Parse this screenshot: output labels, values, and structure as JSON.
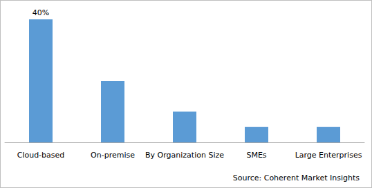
{
  "chart_data": {
    "type": "bar",
    "categories": [
      "Cloud-based",
      "On-premise",
      "By Organization Size",
      "SMEs",
      "Large Enterprises"
    ],
    "values": [
      40,
      20,
      10,
      5,
      5
    ],
    "value_labels": [
      "40%",
      null,
      null,
      null,
      null
    ],
    "data_labels": true,
    "color": "#5b9bd5",
    "ylim": [
      0,
      40
    ],
    "grid": false,
    "tick_labels": "x",
    "source": "Source: Coherent Market Insights"
  }
}
